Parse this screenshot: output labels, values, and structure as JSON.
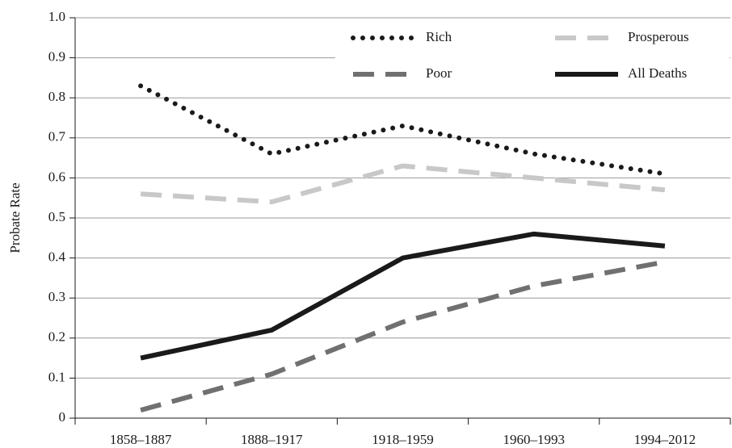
{
  "chart_data": {
    "type": "line",
    "y_label": "Probate Rate",
    "categories": [
      "1858–1887",
      "1888–1917",
      "1918–1959",
      "1960–1993",
      "1994–2012"
    ],
    "series": [
      {
        "name": "Rich",
        "color": "#1a1a1a",
        "style": "dotted",
        "values": [
          0.83,
          0.66,
          0.73,
          0.66,
          0.61
        ]
      },
      {
        "name": "Prosperous",
        "color": "#c8c8c8",
        "style": "dashed",
        "values": [
          0.56,
          0.54,
          0.63,
          0.6,
          0.57
        ]
      },
      {
        "name": "Poor",
        "color": "#707070",
        "style": "dashed",
        "values": [
          0.02,
          0.11,
          0.24,
          0.33,
          0.39
        ]
      },
      {
        "name": "All Deaths",
        "color": "#1a1a1a",
        "style": "solid",
        "values": [
          0.15,
          0.22,
          0.4,
          0.46,
          0.43
        ]
      }
    ],
    "ylim": [
      0,
      1
    ],
    "yticks": [
      0,
      0.1,
      0.2,
      0.3,
      0.4,
      0.5,
      0.6,
      0.7,
      0.8,
      0.9,
      {
        "value": 1,
        "label": "1.0"
      }
    ],
    "grid": true
  }
}
